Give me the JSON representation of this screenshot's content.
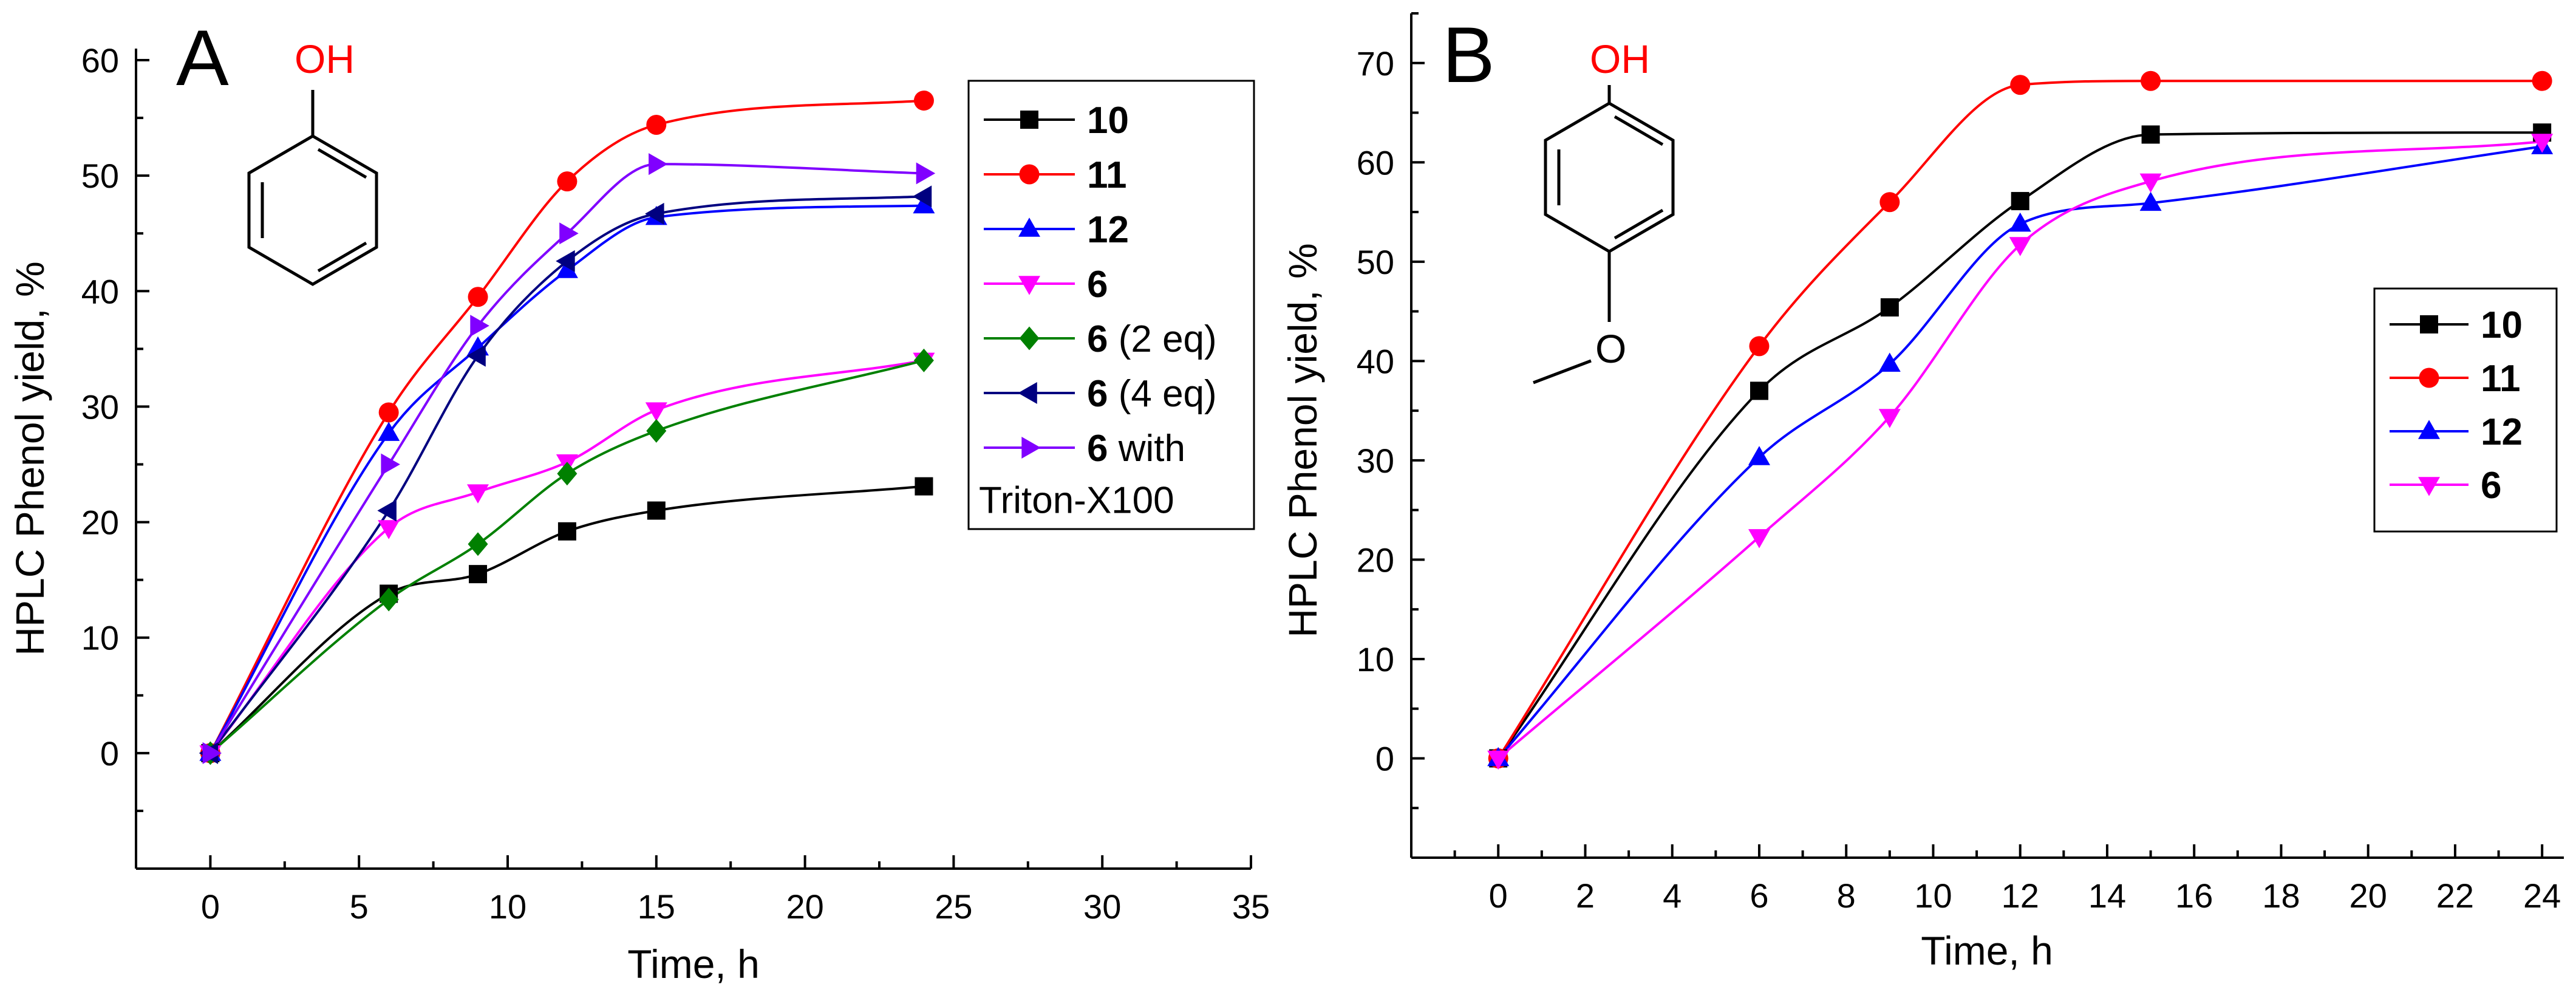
{
  "chart_data": [
    {
      "type": "line",
      "panel_label": "A",
      "molecule": {
        "label": "OH",
        "label_color": "#ff0000",
        "name": "phenol"
      },
      "xlabel": "Time, h",
      "ylabel": "HPLC Phenol yield, %",
      "xlim": [
        -2.5,
        35
      ],
      "ylim": [
        -10,
        61
      ],
      "xticks": [
        0,
        5,
        10,
        15,
        20,
        25,
        30,
        35
      ],
      "yticks": [
        0,
        10,
        20,
        30,
        40,
        50,
        60
      ],
      "legend_position": "top-right",
      "legend_box": true,
      "series": [
        {
          "id": "10",
          "name": "10",
          "suffix": "",
          "suffix2": "",
          "color": "#000000",
          "marker": "square",
          "x": [
            0,
            6,
            9,
            12,
            15,
            24
          ],
          "y": [
            0,
            13.8,
            15.5,
            19.2,
            21,
            23.1
          ]
        },
        {
          "id": "11",
          "name": "11",
          "suffix": "",
          "suffix2": "",
          "color": "#ff0000",
          "marker": "circle",
          "x": [
            0,
            6,
            9,
            12,
            15,
            24
          ],
          "y": [
            0,
            29.5,
            39.5,
            49.5,
            54.4,
            56.5
          ]
        },
        {
          "id": "12",
          "name": "12",
          "suffix": "",
          "suffix2": "",
          "color": "#0000ff",
          "marker": "triangle-up",
          "x": [
            0,
            6,
            9,
            12,
            15,
            24
          ],
          "y": [
            0,
            27.7,
            35.1,
            41.8,
            46.4,
            47.4
          ]
        },
        {
          "id": "6",
          "name": "6",
          "suffix": "",
          "suffix2": "",
          "color": "#ff00ff",
          "marker": "triangle-down",
          "x": [
            0,
            6,
            9,
            12,
            15,
            24
          ],
          "y": [
            0,
            19.5,
            22.6,
            25.2,
            29.7,
            34
          ]
        },
        {
          "id": "6-2eq",
          "name": "6",
          "suffix": " (2 eq)",
          "suffix2": "",
          "color": "#008000",
          "marker": "diamond",
          "x": [
            0,
            6,
            9,
            12,
            15,
            24
          ],
          "y": [
            0,
            13.3,
            18.1,
            24.2,
            27.9,
            34
          ]
        },
        {
          "id": "6-4eq",
          "name": "6",
          "suffix": " (4 eq)",
          "suffix2": "",
          "color": "#000080",
          "marker": "triangle-left",
          "x": [
            0,
            6,
            9,
            12,
            15,
            24
          ],
          "y": [
            0,
            21,
            34.4,
            42.6,
            46.7,
            48.2
          ]
        },
        {
          "id": "6-triton",
          "name": "6",
          "suffix": " with",
          "suffix2": "Triton-X100",
          "color": "#8000ff",
          "marker": "triangle-right",
          "x": [
            0,
            6,
            9,
            12,
            15,
            24
          ],
          "y": [
            0,
            25,
            37,
            45,
            51,
            50.2
          ]
        }
      ]
    },
    {
      "type": "line",
      "panel_label": "B",
      "molecule": {
        "label": "OH",
        "label_color": "#ff0000",
        "name": "4-methoxyphenol",
        "substituent": "O"
      },
      "xlabel": "Time, h",
      "ylabel": "HPLC Phenol yield, %",
      "xlim": [
        -2,
        24.5
      ],
      "ylim": [
        -10,
        75
      ],
      "xticks": [
        0,
        2,
        4,
        6,
        8,
        10,
        12,
        14,
        16,
        18,
        20,
        22,
        24
      ],
      "yticks": [
        0,
        10,
        20,
        30,
        40,
        50,
        60,
        70
      ],
      "legend_position": "right",
      "legend_box": true,
      "series": [
        {
          "id": "10",
          "name": "10",
          "color": "#000000",
          "marker": "square",
          "x": [
            0,
            6,
            9,
            12,
            15,
            24
          ],
          "y": [
            0,
            37,
            45.4,
            56.1,
            62.8,
            63
          ]
        },
        {
          "id": "11",
          "name": "11",
          "color": "#ff0000",
          "marker": "circle",
          "x": [
            0,
            6,
            9,
            12,
            15,
            24
          ],
          "y": [
            0,
            41.5,
            56,
            67.8,
            68.2,
            68.2
          ]
        },
        {
          "id": "12",
          "name": "12",
          "color": "#0000ff",
          "marker": "triangle-up",
          "x": [
            0,
            6,
            9,
            12,
            15,
            24
          ],
          "y": [
            0,
            30.3,
            39.7,
            53.8,
            55.9,
            61.6
          ]
        },
        {
          "id": "6",
          "name": "6",
          "color": "#ff00ff",
          "marker": "triangle-down",
          "x": [
            0,
            6,
            9,
            12,
            15,
            24
          ],
          "y": [
            0,
            22.3,
            34.4,
            51.7,
            58.1,
            62.1
          ]
        }
      ]
    }
  ]
}
